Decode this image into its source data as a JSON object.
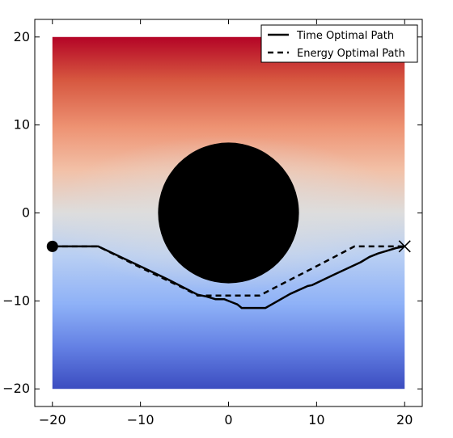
{
  "chart_data": {
    "type": "line",
    "title": "",
    "xlabel": "",
    "ylabel": "",
    "xlim": [
      -22,
      22
    ],
    "ylim": [
      -22,
      22
    ],
    "xticks": [
      -20,
      -10,
      0,
      10,
      20
    ],
    "yticks": [
      -20,
      -10,
      0,
      10,
      20
    ],
    "x_tick_labels": [
      "−20",
      "−10",
      "0",
      "10",
      "20"
    ],
    "y_tick_labels": [
      "−20",
      "−10",
      "0",
      "10",
      "20"
    ],
    "grid": false,
    "legend_position": "top-right",
    "background_field": {
      "extent": [
        -20,
        20,
        -20,
        20
      ],
      "colormap": "coolwarm",
      "low_color": "#3b4cc0",
      "mid_color": "#dddddd",
      "high_color": "#b40426"
    },
    "obstacle": {
      "center": [
        0,
        0
      ],
      "radius": 8,
      "color": "#000000"
    },
    "start": [
      -20,
      -3.8
    ],
    "goal": [
      20,
      -3.8
    ],
    "series": [
      {
        "name": "Time Optimal Path",
        "style": "solid",
        "color": "#000000",
        "x": [
          -20,
          -14.8,
          -11,
          -7,
          -3.5,
          -2.5,
          -1.5,
          -0.5,
          0,
          0.5,
          1,
          1.5,
          4.2,
          7,
          9,
          9.5,
          12,
          15,
          16,
          17,
          18,
          19,
          20
        ],
        "y": [
          -3.8,
          -3.8,
          -5.6,
          -7.5,
          -9.3,
          -9.5,
          -9.8,
          -9.8,
          -10,
          -10.2,
          -10.4,
          -10.8,
          -10.8,
          -9.2,
          -8.3,
          -8.2,
          -7,
          -5.6,
          -5,
          -4.6,
          -4.3,
          -4,
          -3.8
        ]
      },
      {
        "name": "Energy Optimal Path",
        "style": "dashed",
        "color": "#000000",
        "x": [
          -20,
          -14.8,
          -10,
          -5,
          -3.5,
          -0.5,
          3.5,
          7,
          10.5,
          14.3,
          20
        ],
        "y": [
          -3.8,
          -3.8,
          -6.2,
          -8.6,
          -9.4,
          -9.4,
          -9.4,
          -7.6,
          -5.8,
          -3.8,
          -3.8
        ]
      }
    ]
  }
}
